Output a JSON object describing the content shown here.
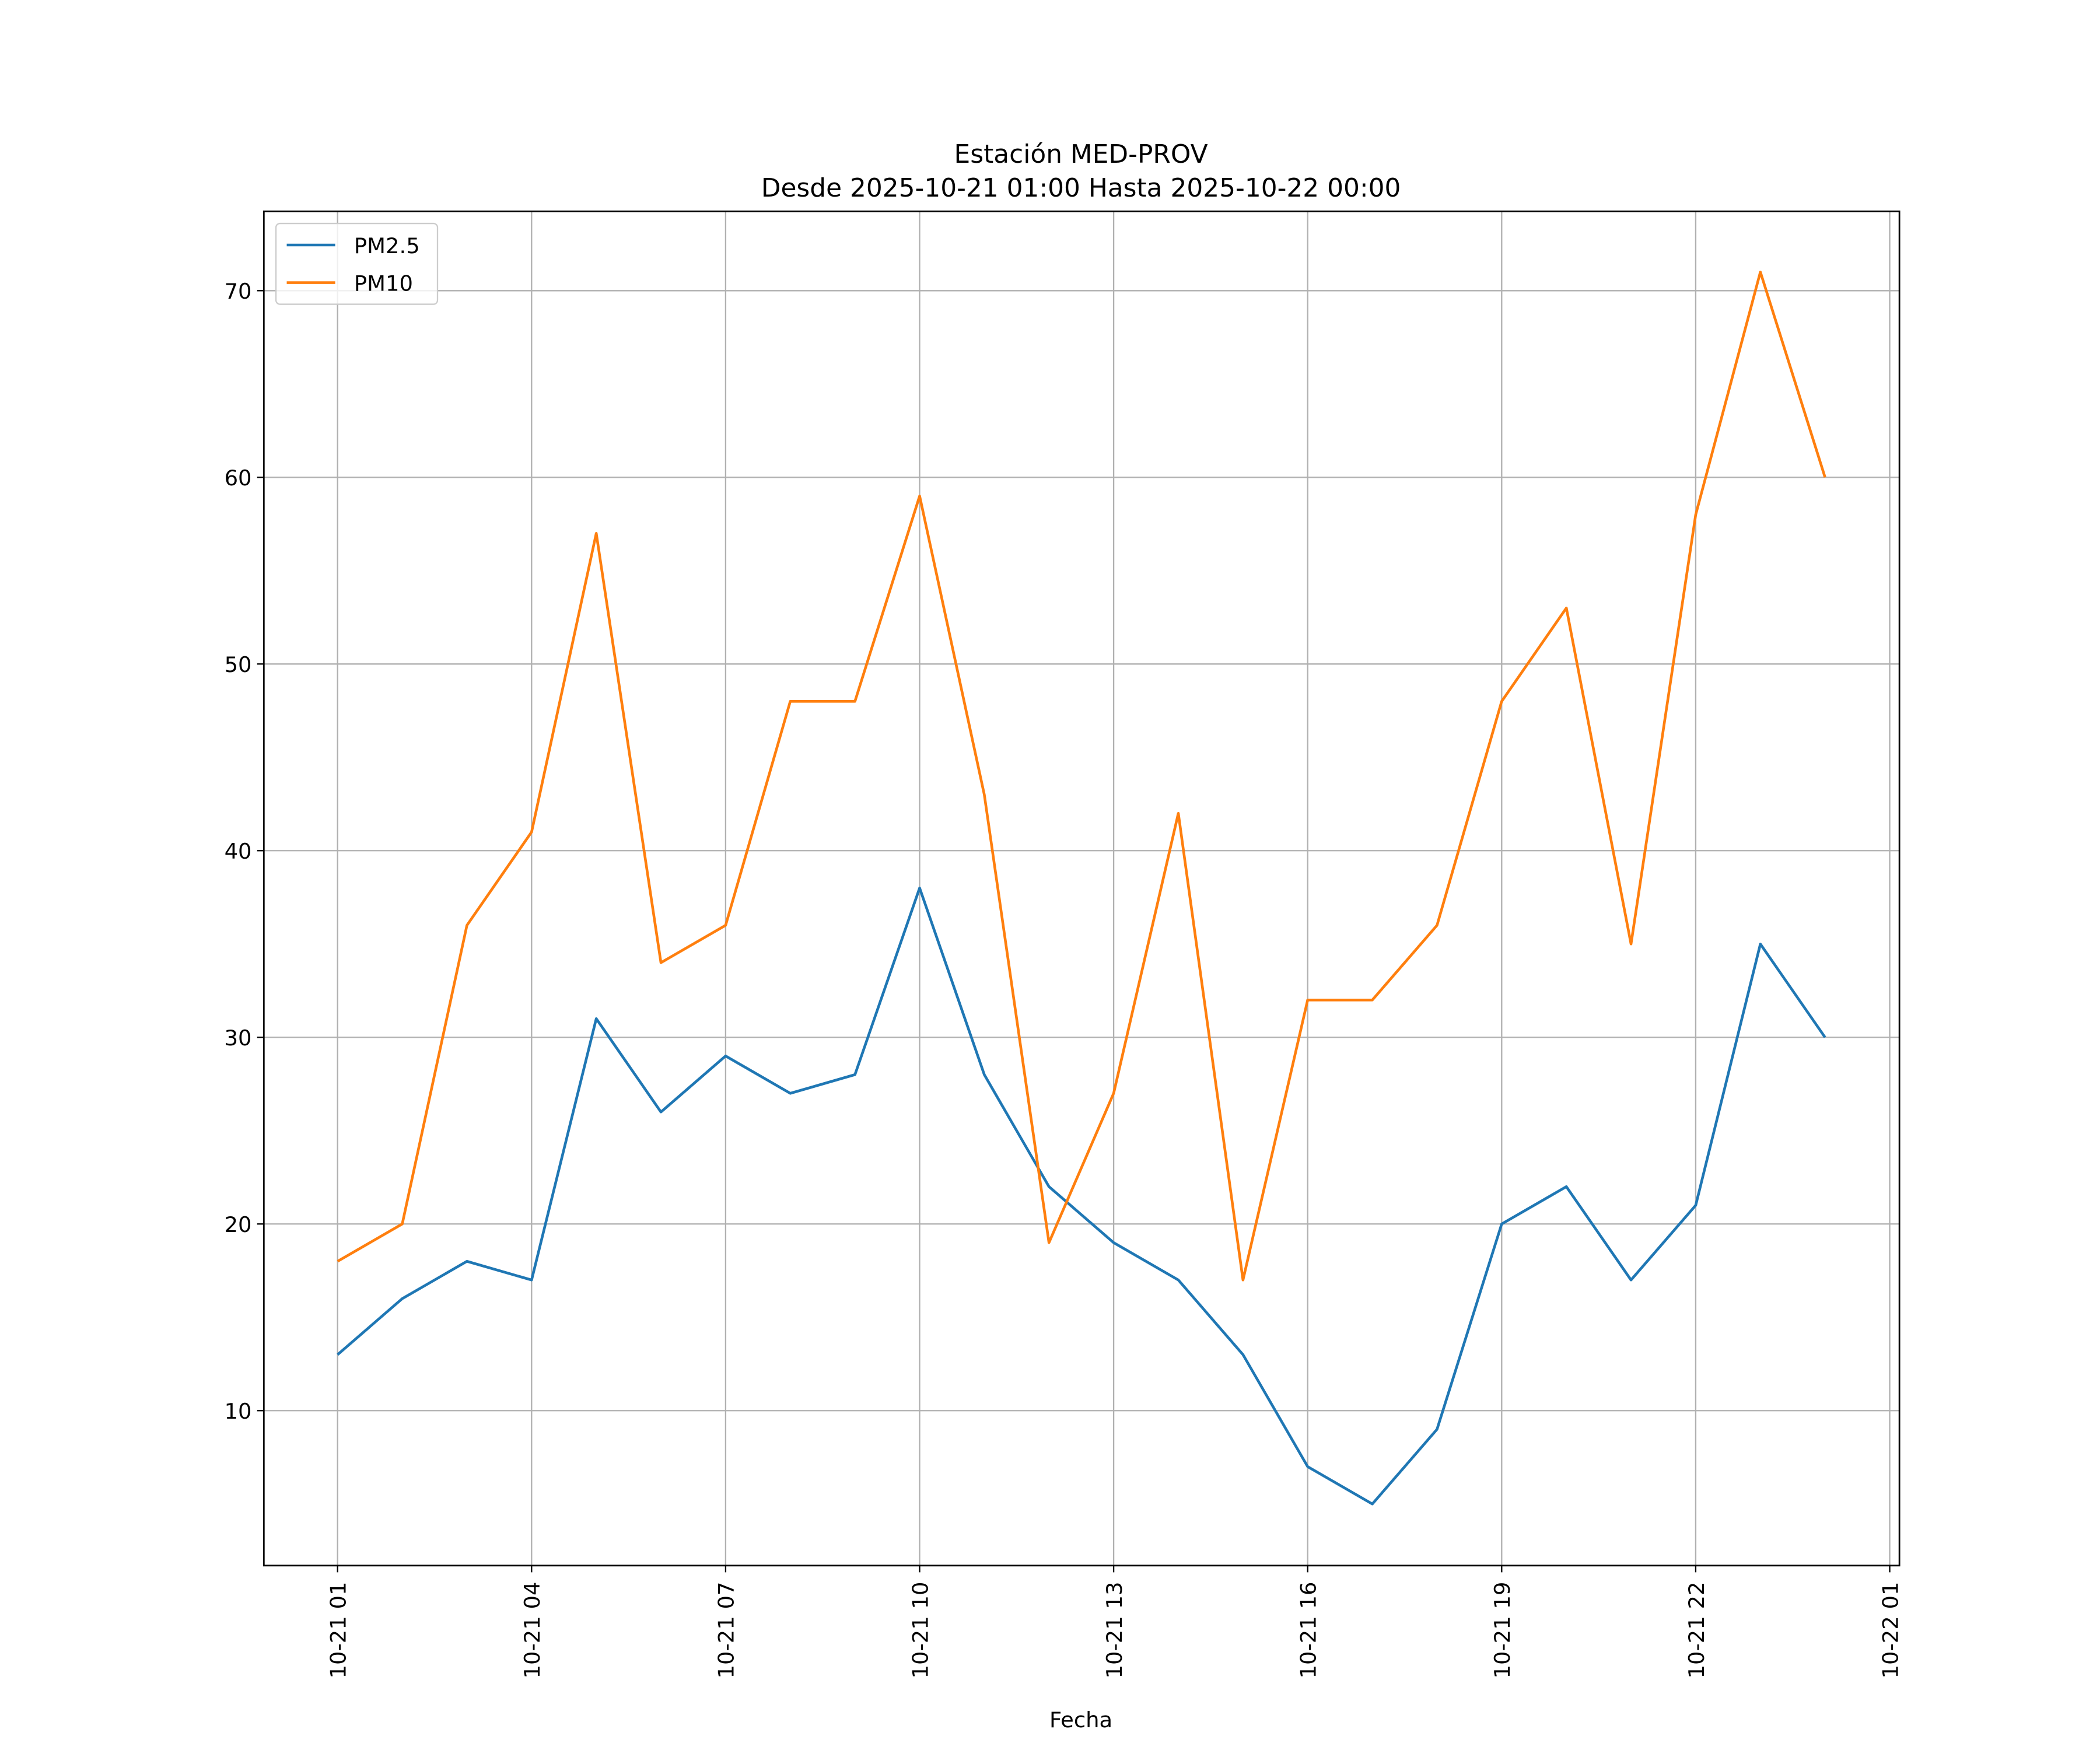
{
  "chart_data": {
    "type": "line",
    "title": "Estación MED-PROV",
    "subtitle": "Desde 2025-10-21 01:00 Hasta 2025-10-22 00:00",
    "xlabel": "Fecha",
    "ylabel": "",
    "x_hours": [
      1,
      2,
      3,
      4,
      5,
      6,
      7,
      8,
      9,
      10,
      11,
      12,
      13,
      14,
      15,
      16,
      17,
      18,
      19,
      20,
      21,
      22,
      23,
      24
    ],
    "xlim": [
      -0.14,
      25.15
    ],
    "ylim": [
      1.7,
      74.25
    ],
    "xticks": [
      {
        "hour": 1,
        "label": "10-21 01"
      },
      {
        "hour": 4,
        "label": "10-21 04"
      },
      {
        "hour": 7,
        "label": "10-21 07"
      },
      {
        "hour": 10,
        "label": "10-21 10"
      },
      {
        "hour": 13,
        "label": "10-21 13"
      },
      {
        "hour": 16,
        "label": "10-21 16"
      },
      {
        "hour": 19,
        "label": "10-21 19"
      },
      {
        "hour": 22,
        "label": "10-21 22"
      },
      {
        "hour": 25,
        "label": "10-22 01"
      }
    ],
    "yticks": [
      10,
      20,
      30,
      40,
      50,
      60,
      70
    ],
    "grid": true,
    "legend_position": "top-left",
    "series": [
      {
        "name": "PM2.5",
        "color": "#1f77b4",
        "values": [
          13,
          16,
          18,
          17,
          31,
          26,
          29,
          27,
          28,
          38,
          28,
          22,
          19,
          17,
          13,
          7,
          5,
          9,
          20,
          22,
          17,
          21,
          35,
          30
        ]
      },
      {
        "name": "PM10",
        "color": "#ff7f0e",
        "values": [
          18,
          20,
          36,
          41,
          57,
          34,
          36,
          48,
          48,
          59,
          43,
          19,
          27,
          42,
          17,
          32,
          32,
          36,
          48,
          53,
          35,
          58,
          71,
          60
        ]
      }
    ]
  }
}
